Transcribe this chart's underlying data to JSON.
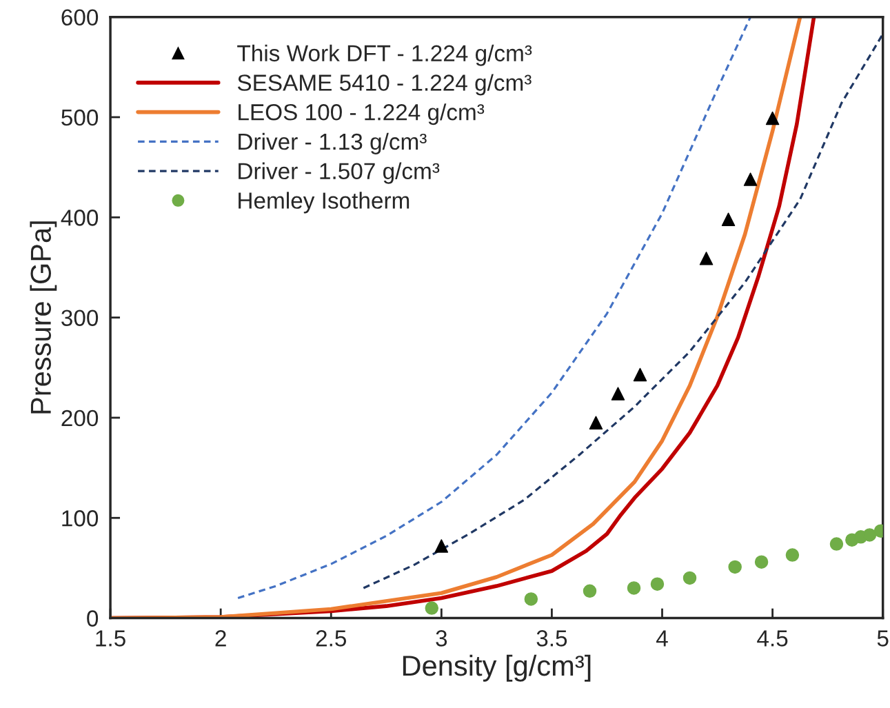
{
  "chart_data": {
    "type": "line",
    "xlabel": "Density [g/cm³]",
    "ylabel": "Pressure [GPa]",
    "xlim": [
      1.5,
      5
    ],
    "ylim": [
      0,
      600
    ],
    "xticks": [
      1.5,
      2,
      2.5,
      3,
      3.5,
      4,
      4.5,
      5
    ],
    "yticks": [
      0,
      100,
      200,
      300,
      400,
      500,
      600
    ],
    "grid": false,
    "legend": "top left",
    "series": [
      {
        "name": "This Work DFT - 1.224 g/cm³",
        "type": "scatter",
        "marker": "triangle",
        "color": "#000000",
        "x": [
          3.0,
          3.7,
          3.8,
          3.9,
          4.2,
          4.3,
          4.4,
          4.5
        ],
        "values": [
          72,
          195,
          224,
          243,
          359,
          398,
          438,
          499
        ]
      },
      {
        "name": "SESAME 5410 - 1.224 g/cm³",
        "line_style": "solid",
        "color": "#c00000",
        "x": [
          1.5,
          2.0,
          2.5,
          2.75,
          3.0,
          3.25,
          3.5,
          3.656,
          3.75,
          3.8125,
          3.875,
          4.0,
          4.125,
          4.25,
          4.344,
          4.4375,
          4.53,
          4.61,
          4.6875
        ],
        "values": [
          0,
          1,
          7,
          12,
          20,
          32,
          47,
          67,
          84,
          103,
          120,
          149,
          185,
          232,
          280,
          342,
          411,
          493,
          600
        ]
      },
      {
        "name": "LEOS 100 - 1.224 g/cm³",
        "line_style": "solid",
        "color": "#ed7d31",
        "x": [
          1.5,
          2.0,
          2.5,
          3.0,
          3.25,
          3.5,
          3.6875,
          3.875,
          4.0,
          4.125,
          4.25,
          4.375,
          4.5,
          4.625
        ],
        "values": [
          0,
          1,
          9,
          25,
          41,
          63,
          94,
          136,
          177,
          232,
          301,
          383,
          486,
          600
        ]
      },
      {
        "name": "Driver - 1.13 g/cm³",
        "line_style": "dashed",
        "color": "#4472c4",
        "x": [
          2.078,
          2.25,
          2.5,
          2.75,
          3.0,
          3.25,
          3.5,
          3.75,
          4.0,
          4.25,
          4.4
        ],
        "values": [
          20,
          32,
          54,
          82,
          116,
          163,
          225,
          304,
          404,
          528,
          600
        ]
      },
      {
        "name": "Driver - 1.507 g/cm³",
        "line_style": "dashed",
        "color": "#203864",
        "x": [
          2.647,
          2.875,
          3.125,
          3.375,
          3.625,
          3.875,
          4.125,
          4.375,
          4.625,
          4.8125,
          5.0
        ],
        "values": [
          30,
          53,
          84,
          118,
          163,
          211,
          266,
          335,
          418,
          514,
          583
        ]
      },
      {
        "name": "Hemley Isotherm",
        "type": "scatter",
        "marker": "circle",
        "color": "#70ad47",
        "x": [
          2.956,
          3.406,
          3.672,
          3.872,
          3.978,
          4.125,
          4.33,
          4.45,
          4.59,
          4.79,
          4.86,
          4.9,
          4.94,
          4.99
        ],
        "values": [
          10,
          19,
          27,
          30,
          34,
          40,
          51,
          56,
          63,
          74,
          78,
          81,
          83,
          87
        ]
      }
    ]
  }
}
